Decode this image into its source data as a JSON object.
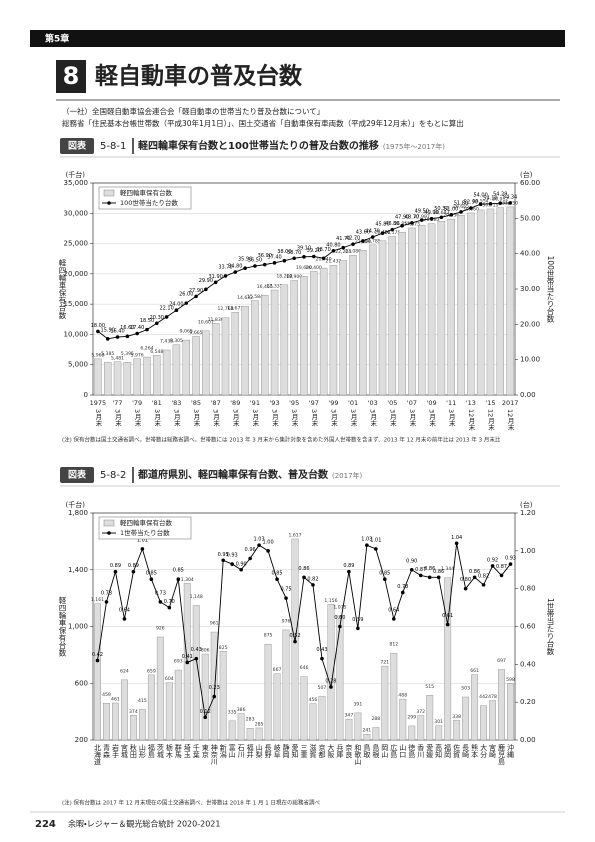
{
  "header": {
    "chapter": "第5章",
    "number": "8",
    "title": "軽自動車の普及台数"
  },
  "source": [
    "（一社）全国軽自動車協会連合会「軽自動車の世帯当たり普及台数について」",
    "総務省「住民基本台帳世帯数（平成30年1月1日）」、国土交通省「自動車保有車両数（平成29年12月末）」をもとに算出"
  ],
  "footer": {
    "page": "224",
    "book": "余暇・レジャー＆観光総合統計 2020-2021"
  },
  "chart_data": [
    {
      "type": "bar_line",
      "figure_label": "図表",
      "figure_number": "5-8-1",
      "title": "軽四輪車保有台数と100世帯当たりの普及台数の推移",
      "subtitle": "(1975年～2017年)",
      "y_unit": "(千台)",
      "y2_unit": "(台)",
      "ylabel": "軽四輪車保有台数",
      "y2label": "100世帯当たり台数",
      "grid": true,
      "legend": "upper left",
      "categories": [
        "1975",
        null,
        "'77",
        null,
        "'79",
        null,
        "'81",
        null,
        "'83",
        null,
        "'85",
        null,
        "'87",
        null,
        "'89",
        null,
        "'91",
        null,
        "'93",
        null,
        "'95",
        null,
        "'97",
        null,
        "'99",
        null,
        "'01",
        null,
        "'03",
        null,
        "'05",
        null,
        "'07",
        null,
        "'09",
        null,
        "'11",
        null,
        "'13",
        null,
        "'15",
        null,
        "2017"
      ],
      "category_sublabels": [
        "3月末",
        null,
        "3月末",
        null,
        "3月末",
        null,
        "3月末",
        null,
        "3月末",
        null,
        "3月末",
        null,
        "3月末",
        null,
        "3月末",
        null,
        "3月末",
        null,
        "3月末",
        null,
        "3月末",
        null,
        "3月末",
        null,
        "3月末",
        null,
        "3月末",
        null,
        "3月末",
        null,
        "3月末",
        null,
        "3月末",
        null,
        "3月末",
        null,
        "3月末",
        null,
        "12月末",
        null,
        "12月末",
        null,
        "12月末"
      ],
      "ylim": [
        0,
        35000
      ],
      "yticks": [
        0,
        {
          "value": 5000,
          "label": "5,000"
        },
        {
          "value": 10000,
          "label": "10,000"
        },
        {
          "value": 15000,
          "label": "15,000"
        },
        {
          "value": 20000,
          "label": "20,000"
        },
        {
          "value": 25000,
          "label": "25,000"
        },
        {
          "value": 30000,
          "label": "30,000"
        },
        {
          "value": 35000,
          "label": "35,000"
        }
      ],
      "y2lim": [
        0,
        60
      ],
      "y2ticks": [
        {
          "value": 0,
          "label": "0.00"
        },
        {
          "value": 10,
          "label": "10.00"
        },
        {
          "value": 20,
          "label": "20.00"
        },
        {
          "value": 30,
          "label": "30.00"
        },
        {
          "value": 40,
          "label": "40.00"
        },
        {
          "value": 50,
          "label": "50.00"
        },
        {
          "value": 60,
          "label": "60.00"
        }
      ],
      "series": [
        {
          "name": "軽四輪車保有台数",
          "mark": "bar",
          "color": "#dddddd",
          "values": [
            5968,
            5385,
            5481,
            5395,
            5976,
            6264,
            6548,
            7433,
            8305,
            9065,
            9665,
            10607,
            11830,
            12768,
            13673,
            14632,
            15584,
            16465,
            17331,
            18200,
            18900,
            19600,
            20400,
            20949,
            21432,
            22204,
            23080,
            23890,
            24785,
            25462,
            26175,
            26853,
            27573,
            27997,
            28283,
            28683,
            29036,
            29665,
            30060,
            30554,
            30719,
            30912,
            31050
          ],
          "value_labels": [
            "5,968",
            "5,385",
            "5,481",
            "5,395",
            "5,976",
            "6,264",
            "6,548",
            "7,433",
            "8,305",
            "9,065",
            "9,665",
            "10,607",
            "11,830",
            "12,768",
            "13,673",
            "14,632",
            "15,584",
            "16,465",
            "17,331",
            "18,200",
            "18,900",
            "19,600",
            "20,400",
            "20,949",
            "21,432",
            "22,204",
            "23,080",
            "23,890",
            "24,785",
            "25,462",
            "26,175",
            "26,853",
            "27,573",
            "27,997",
            "28,283",
            "28,683",
            "29,036",
            "29,665",
            "30,060",
            "30,554",
            "30,719",
            "30,912",
            "31,050"
          ]
        },
        {
          "name": "100世帯当たり台数",
          "mark": "line",
          "axis": "y2",
          "color": "#000000",
          "values": [
            18,
            15.9,
            16.4,
            16.6,
            17.4,
            18.5,
            20.3,
            22.1,
            24,
            26,
            27.9,
            29.9,
            31.9,
            33.7,
            34.8,
            35.9,
            36.5,
            36.9,
            37.4,
            38,
            38.7,
            39.1,
            39.2,
            38.7,
            40.8,
            41.7,
            42.7,
            43.6,
            44.7,
            45.8,
            46.8,
            47.9,
            48.7,
            49.5,
            49.9,
            50.3,
            51,
            51.8,
            52.9,
            54,
            54.1,
            54.29,
            54.34
          ],
          "value_labels": [
            "18.00",
            "15.90",
            "16.40",
            "16.60",
            "17.40",
            "18.50",
            "20.30",
            "22.10",
            "24.00",
            "26.00",
            "27.90",
            "29.90",
            "31.90",
            "33.70",
            "34.80",
            "35.90",
            "36.50",
            "36.90",
            "37.40",
            "38.00",
            "38.70",
            "39.10",
            "39.20",
            "38.70",
            "40.80",
            "41.70",
            "42.70",
            "43.60",
            "44.70",
            "45.80",
            "46.80",
            "47.90",
            "48.70",
            "49.50",
            "49.90",
            "50.30",
            "51.00",
            "51.80",
            "52.90",
            "54.00",
            "54.10",
            "54.29",
            "54.34"
          ]
        }
      ],
      "note": "(注) 保有台数は国土交通省調べ。世帯数は総務省調べ。世帯数には 2013 年 3 月末から集計対象を含めた外国人世帯数を含まず、2013 年 12 月末の前年比は 2013 年 3 月末比"
    },
    {
      "type": "bar_line",
      "figure_label": "図表",
      "figure_number": "5-8-2",
      "title": "都道府県別、軽四輪車保有台数、普及台数",
      "subtitle": "(2017年)",
      "y_unit": "(千台)",
      "y2_unit": "(台)",
      "ylabel": "軽四輪車保有台数",
      "y2label": "1世帯当たり台数",
      "grid": true,
      "legend": "upper left",
      "categories": [
        "北海道",
        "青森",
        "岩手",
        "宮城",
        "秋田",
        "山形",
        "福島",
        "茨城",
        "栃木",
        "群馬",
        "埼玉",
        "千葉",
        "東京",
        "神奈川",
        "新潟",
        "富山",
        "石川",
        "福井",
        "山梨",
        "長野",
        "岐阜",
        "静岡",
        "愛知",
        "三重",
        "滋賀",
        "京都",
        "大阪",
        "兵庫",
        "奈良",
        "和歌山",
        "鳥取",
        "島根",
        "岡山",
        "広島",
        "山口",
        "徳島",
        "香川",
        "愛媛",
        "高知",
        "福岡",
        "佐賀",
        "長崎",
        "熊本",
        "大分",
        "宮崎",
        "鹿児島",
        "沖縄"
      ],
      "ylim": [
        200,
        1800
      ],
      "yticks": [
        200,
        600,
        {
          "value": 1000,
          "label": "1,000"
        },
        {
          "value": 1400,
          "label": "1,400"
        },
        {
          "value": 1800,
          "label": "1,800"
        }
      ],
      "y2lim": [
        0,
        1.2
      ],
      "y2ticks": [
        {
          "value": 0,
          "label": "0.00"
        },
        {
          "value": 0.2,
          "label": "0.20"
        },
        {
          "value": 0.4,
          "label": "0.40"
        },
        {
          "value": 0.6,
          "label": "0.60"
        },
        {
          "value": 0.8,
          "label": "0.80"
        },
        {
          "value": 1,
          "label": "1.00"
        },
        {
          "value": 1.2,
          "label": "1.20"
        }
      ],
      "series": [
        {
          "name": "軽四輪車保有台数",
          "mark": "bar",
          "color": "#dddddd",
          "values": [
            1161,
            459,
            461,
            624,
            374,
            415,
            659,
            926,
            604,
            693,
            1304,
            1148,
            806,
            961,
            825,
            335,
            386,
            283,
            285,
            875,
            667,
            976,
            1617,
            646,
            456,
            507,
            1156,
            1075,
            347,
            391,
            241,
            288,
            721,
            812,
            488,
            299,
            372,
            515,
            301,
            1344,
            338,
            503,
            661,
            442,
            478,
            697,
            598
          ],
          "value_labels": [
            "1,161",
            "459",
            "461",
            "624",
            "374",
            "415",
            "659",
            "926",
            "604",
            "693",
            "1,304",
            "1,148",
            "806",
            "961",
            "825",
            "335",
            "386",
            "283",
            "285",
            "875",
            "667",
            "976",
            "1,617",
            "646",
            "456",
            "507",
            "1,156",
            "1,075",
            "347",
            "391",
            "241",
            "288",
            "721",
            "812",
            "488",
            "299",
            "372",
            "515",
            "301",
            "1,344",
            "338",
            "503",
            "661",
            "442",
            "478",
            "697",
            "598"
          ]
        },
        {
          "name": "1世帯当たり台数",
          "mark": "line",
          "axis": "y2",
          "color": "#000000",
          "values": [
            0.42,
            0.73,
            0.89,
            0.64,
            0.89,
            1.01,
            0.85,
            0.73,
            0.7,
            0.85,
            0.41,
            0.43,
            0.12,
            0.23,
            0.95,
            0.93,
            0.9,
            0.96,
            1.03,
            1,
            0.85,
            0.75,
            0.52,
            0.86,
            0.82,
            0.43,
            0.28,
            0.6,
            0.89,
            0.59,
            1.03,
            1.01,
            0.85,
            0.64,
            0.78,
            0.9,
            0.87,
            0.86,
            0.86,
            0.61,
            1.04,
            0.8,
            0.86,
            0.82,
            0.92,
            0.87,
            0.93
          ],
          "value_labels": [
            "0.42",
            "0.73",
            "0.89",
            "0.64",
            "0.89",
            "1.01",
            "0.85",
            "0.73",
            "0.70",
            "0.85",
            "0.41",
            "0.43",
            "0.12",
            "0.23",
            "0.95",
            "0.93",
            "0.90",
            "0.96",
            "1.03",
            "1.00",
            "0.85",
            "0.75",
            "0.52",
            "0.86",
            "0.82",
            "0.43",
            "0.28",
            "0.60",
            "0.89",
            "0.59",
            "1.03",
            "1.01",
            "0.85",
            "0.64",
            "0.78",
            "0.90",
            "0.87",
            "0.86",
            "0.86",
            "0.61",
            "1.04",
            "0.80",
            "0.86",
            "0.82",
            "0.92",
            "0.87",
            "0.93"
          ]
        }
      ],
      "note": "(注) 保有台数は 2017 年 12 月末現在の国土交通省調べ、世帯数は 2018 年 1 月 1 日現在の総務省調べ"
    }
  ]
}
